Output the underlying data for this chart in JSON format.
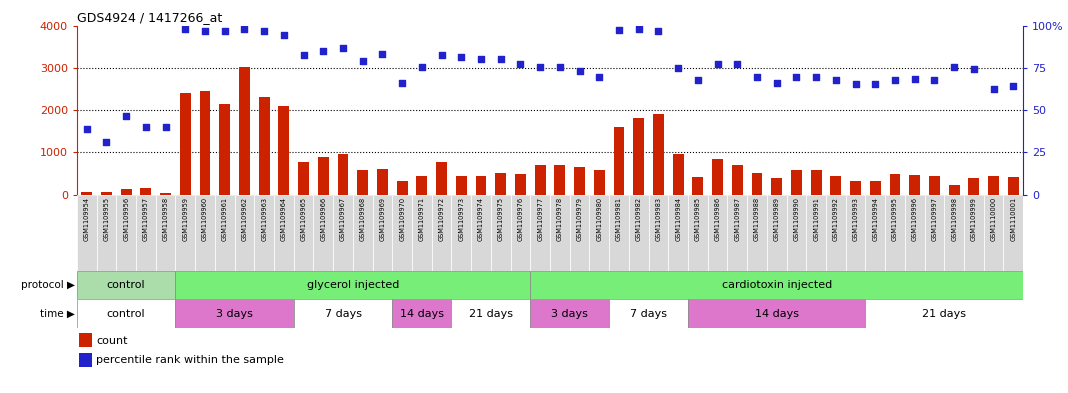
{
  "title": "GDS4924 / 1417266_at",
  "samples": [
    "GSM1109954",
    "GSM1109955",
    "GSM1109956",
    "GSM1109957",
    "GSM1109958",
    "GSM1109959",
    "GSM1109960",
    "GSM1109961",
    "GSM1109962",
    "GSM1109963",
    "GSM1109964",
    "GSM1109965",
    "GSM1109966",
    "GSM1109967",
    "GSM1109968",
    "GSM1109969",
    "GSM1109970",
    "GSM1109971",
    "GSM1109972",
    "GSM1109973",
    "GSM1109974",
    "GSM1109975",
    "GSM1109976",
    "GSM1109977",
    "GSM1109978",
    "GSM1109979",
    "GSM1109980",
    "GSM1109981",
    "GSM1109982",
    "GSM1109983",
    "GSM1109984",
    "GSM1109985",
    "GSM1109986",
    "GSM1109987",
    "GSM1109988",
    "GSM1109989",
    "GSM1109990",
    "GSM1109991",
    "GSM1109992",
    "GSM1109993",
    "GSM1109994",
    "GSM1109995",
    "GSM1109996",
    "GSM1109997",
    "GSM1109998",
    "GSM1109999",
    "GSM1110000",
    "GSM1110001"
  ],
  "bar_values": [
    60,
    50,
    120,
    150,
    40,
    2400,
    2450,
    2150,
    3020,
    2300,
    2100,
    780,
    880,
    960,
    570,
    610,
    310,
    450,
    760,
    440,
    450,
    500,
    480,
    700,
    700,
    650,
    580,
    1600,
    1800,
    1900,
    950,
    420,
    840,
    700,
    500,
    400,
    570,
    570,
    450,
    330,
    320,
    480,
    460,
    450,
    220,
    390,
    430,
    420
  ],
  "dot_values": [
    1550,
    1250,
    1870,
    1600,
    1600,
    3920,
    3870,
    3870,
    3920,
    3870,
    3780,
    3300,
    3400,
    3460,
    3150,
    3330,
    2640,
    3010,
    3300,
    3250,
    3200,
    3200,
    3100,
    3020,
    3020,
    2920,
    2780,
    3900,
    3930,
    3870,
    3000,
    2700,
    3100,
    3080,
    2780,
    2650,
    2780,
    2780,
    2720,
    2620,
    2620,
    2720,
    2730,
    2720,
    3020,
    2970,
    2500,
    2570
  ],
  "bar_color": "#cc2200",
  "dot_color": "#2222cc",
  "bg_color": "#ffffff",
  "tick_bg_color": "#d8d8d8",
  "protocol_groups": [
    {
      "label": "control",
      "start": 0,
      "end": 5,
      "color": "#aaddaa"
    },
    {
      "label": "glycerol injected",
      "start": 5,
      "end": 23,
      "color": "#77ee77"
    },
    {
      "label": "cardiotoxin injected",
      "start": 23,
      "end": 48,
      "color": "#77ee77"
    }
  ],
  "time_groups": [
    {
      "label": "control",
      "start": 0,
      "end": 5,
      "color": "#ffffff"
    },
    {
      "label": "3 days",
      "start": 5,
      "end": 11,
      "color": "#dd77cc"
    },
    {
      "label": "7 days",
      "start": 11,
      "end": 16,
      "color": "#ffffff"
    },
    {
      "label": "14 days",
      "start": 16,
      "end": 19,
      "color": "#dd77cc"
    },
    {
      "label": "21 days",
      "start": 19,
      "end": 23,
      "color": "#ffffff"
    },
    {
      "label": "3 days",
      "start": 23,
      "end": 27,
      "color": "#dd77cc"
    },
    {
      "label": "7 days",
      "start": 27,
      "end": 31,
      "color": "#ffffff"
    },
    {
      "label": "14 days",
      "start": 31,
      "end": 40,
      "color": "#dd77cc"
    },
    {
      "label": "21 days",
      "start": 40,
      "end": 48,
      "color": "#ffffff"
    }
  ]
}
